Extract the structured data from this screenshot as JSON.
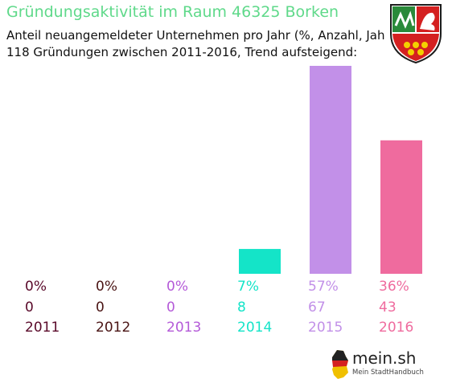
{
  "title": "Gründungsaktivität im Raum 46325 Borken",
  "subtitle_line1": "Anteil neuangemeldeter Unternehmen pro Jahr (%, Anzahl, Jahr)",
  "subtitle_line2": "118 Gründungen zwischen 2011-2016, Trend aufsteigend:",
  "logo": {
    "name": "mein.sh",
    "tagline": "Mein StadtHandbuch"
  },
  "crest_icon": "nrw-coat-of-arms-icon",
  "chart_data": {
    "type": "bar",
    "categories": [
      "2011",
      "2012",
      "2013",
      "2014",
      "2015",
      "2016"
    ],
    "values": [
      0,
      0,
      0,
      8,
      67,
      43
    ],
    "percent_labels": [
      "0%",
      "0%",
      "0%",
      "7%",
      "57%",
      "36%"
    ],
    "count_labels": [
      "0",
      "0",
      "0",
      "8",
      "67",
      "43"
    ],
    "colors": [
      "#5a0a2a",
      "#4a1414",
      "#b45ad8",
      "#14e4c8",
      "#c290e8",
      "#ef6b9e"
    ],
    "grid": false,
    "legend": "none",
    "total": 118
  }
}
